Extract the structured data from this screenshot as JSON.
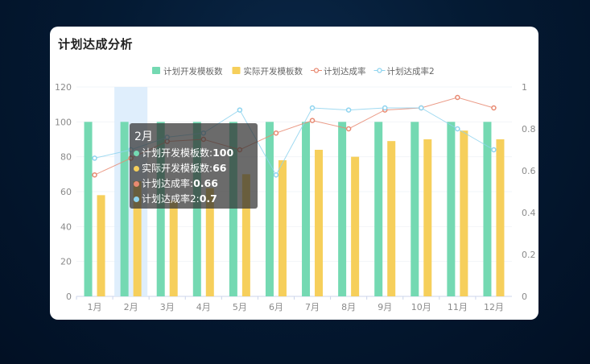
{
  "page": {
    "title": "计划达成分析"
  },
  "tooltip": {
    "month": "2月",
    "rows": [
      {
        "label": "计划开发模板数",
        "value": "100",
        "color": "#74d9b2"
      },
      {
        "label": "实际开发模板数",
        "value": "66",
        "color": "#f6cf5b"
      },
      {
        "label": "计划达成率",
        "value": "0.66",
        "color": "#e88a72"
      },
      {
        "label": "计划达成率2",
        "value": "0.7",
        "color": "#8fd4ef"
      }
    ]
  },
  "chart_data": {
    "type": "bar",
    "categories": [
      "1月",
      "2月",
      "3月",
      "4月",
      "5月",
      "6月",
      "7月",
      "8月",
      "9月",
      "10月",
      "11月",
      "12月"
    ],
    "ylim": [
      0,
      120
    ],
    "y_ticks": [
      0,
      20,
      40,
      60,
      80,
      100,
      120
    ],
    "y2lim": [
      0,
      1
    ],
    "y2_ticks": [
      0,
      0.2,
      0.4,
      0.6,
      0.8,
      1
    ],
    "highlight_category": "2月",
    "legend_position": "top-right",
    "series": [
      {
        "name": "计划开发模板数",
        "kind": "bar",
        "axis": "left",
        "color": "#74d9b2",
        "values": [
          100,
          100,
          100,
          100,
          100,
          100,
          100,
          100,
          100,
          100,
          100,
          100
        ]
      },
      {
        "name": "实际开发模板数",
        "kind": "bar",
        "axis": "left",
        "color": "#f6cf5b",
        "values": [
          58,
          66,
          55,
          62,
          70,
          78,
          84,
          80,
          89,
          90,
          95,
          90
        ]
      },
      {
        "name": "计划达成率",
        "kind": "line",
        "axis": "right",
        "color": "#e88a72",
        "values": [
          0.58,
          0.66,
          0.74,
          0.75,
          0.7,
          0.78,
          0.84,
          0.8,
          0.89,
          0.9,
          0.95,
          0.9
        ]
      },
      {
        "name": "计划达成率2",
        "kind": "line",
        "axis": "right",
        "color": "#8fd4ef",
        "values": [
          0.66,
          0.7,
          0.76,
          0.78,
          0.89,
          0.58,
          0.9,
          0.89,
          0.9,
          0.9,
          0.8,
          0.7
        ]
      }
    ]
  }
}
